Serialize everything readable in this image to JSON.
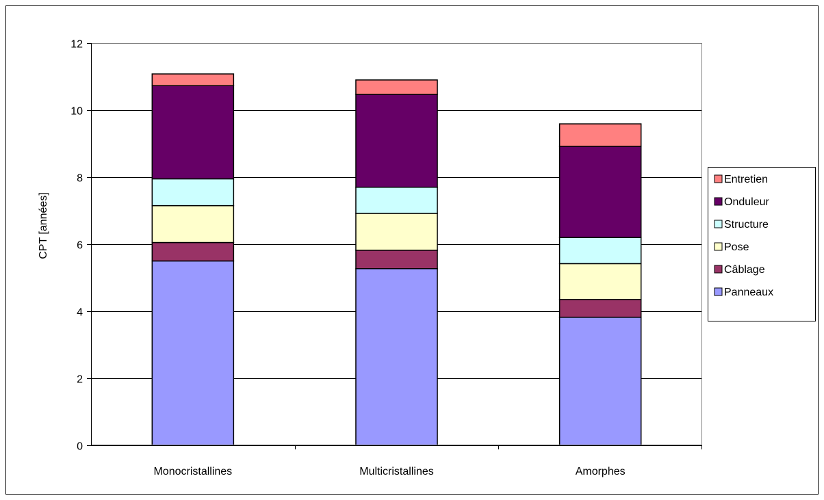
{
  "chart_data": {
    "type": "bar",
    "stacked": true,
    "categories": [
      "Monocristallines",
      "Multicristallines",
      "Amorphes"
    ],
    "series": [
      {
        "name": "Panneaux",
        "color": "#9999ff",
        "values": [
          5.5,
          5.27,
          3.82
        ]
      },
      {
        "name": "Câblage",
        "color": "#993366",
        "values": [
          0.55,
          0.55,
          0.53
        ]
      },
      {
        "name": "Pose",
        "color": "#ffffcc",
        "values": [
          1.1,
          1.1,
          1.07
        ]
      },
      {
        "name": "Structure",
        "color": "#ccffff",
        "values": [
          0.8,
          0.78,
          0.78
        ]
      },
      {
        "name": "Onduleur",
        "color": "#660066",
        "values": [
          2.78,
          2.77,
          2.72
        ]
      },
      {
        "name": "Entretien",
        "color": "#ff8080",
        "values": [
          0.35,
          0.43,
          0.67
        ]
      }
    ],
    "ylabel": "CPT [années]",
    "xlabel": "",
    "title": "",
    "ylim": [
      0,
      12
    ],
    "yticks": [
      "0",
      "2",
      "4",
      "6",
      "8",
      "10",
      "12"
    ],
    "grid": true,
    "legend_position": "right"
  }
}
